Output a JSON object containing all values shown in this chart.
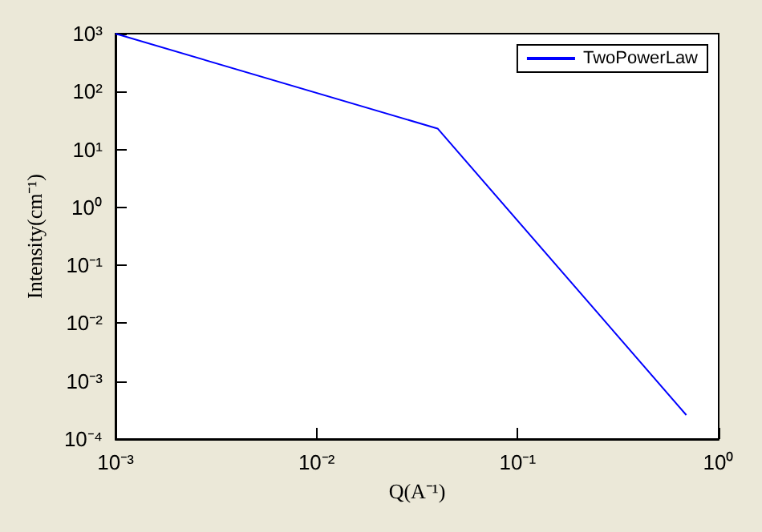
{
  "chart_data": {
    "type": "line",
    "xlabel": "Q(A⁻¹)",
    "ylabel": "Intensity(cm⁻¹)",
    "log": "xy",
    "x": [
      0.001,
      0.04,
      0.69
    ],
    "series": [
      {
        "name": "TwoPowerLaw",
        "color": "#0000ff",
        "values": [
          1000,
          23,
          0.00026
        ]
      }
    ],
    "xlim": [
      0.001,
      1
    ],
    "ylim": [
      0.0001,
      1000
    ],
    "xticks": [
      {
        "value": 0.001,
        "label": "10⁻³"
      },
      {
        "value": 0.01,
        "label": "10⁻²"
      },
      {
        "value": 0.1,
        "label": "10⁻¹"
      },
      {
        "value": 1,
        "label": "10⁰"
      }
    ],
    "yticks": [
      {
        "value": 0.0001,
        "label": "10⁻⁴"
      },
      {
        "value": 0.001,
        "label": "10⁻³"
      },
      {
        "value": 0.01,
        "label": "10⁻²"
      },
      {
        "value": 0.1,
        "label": "10⁻¹"
      },
      {
        "value": 1,
        "label": "10⁰"
      },
      {
        "value": 10,
        "label": "10¹"
      },
      {
        "value": 100,
        "label": "10²"
      },
      {
        "value": 1000,
        "label": "10³"
      }
    ],
    "legend": "top right",
    "grid": false,
    "line_style": "solid",
    "marker": "none"
  }
}
